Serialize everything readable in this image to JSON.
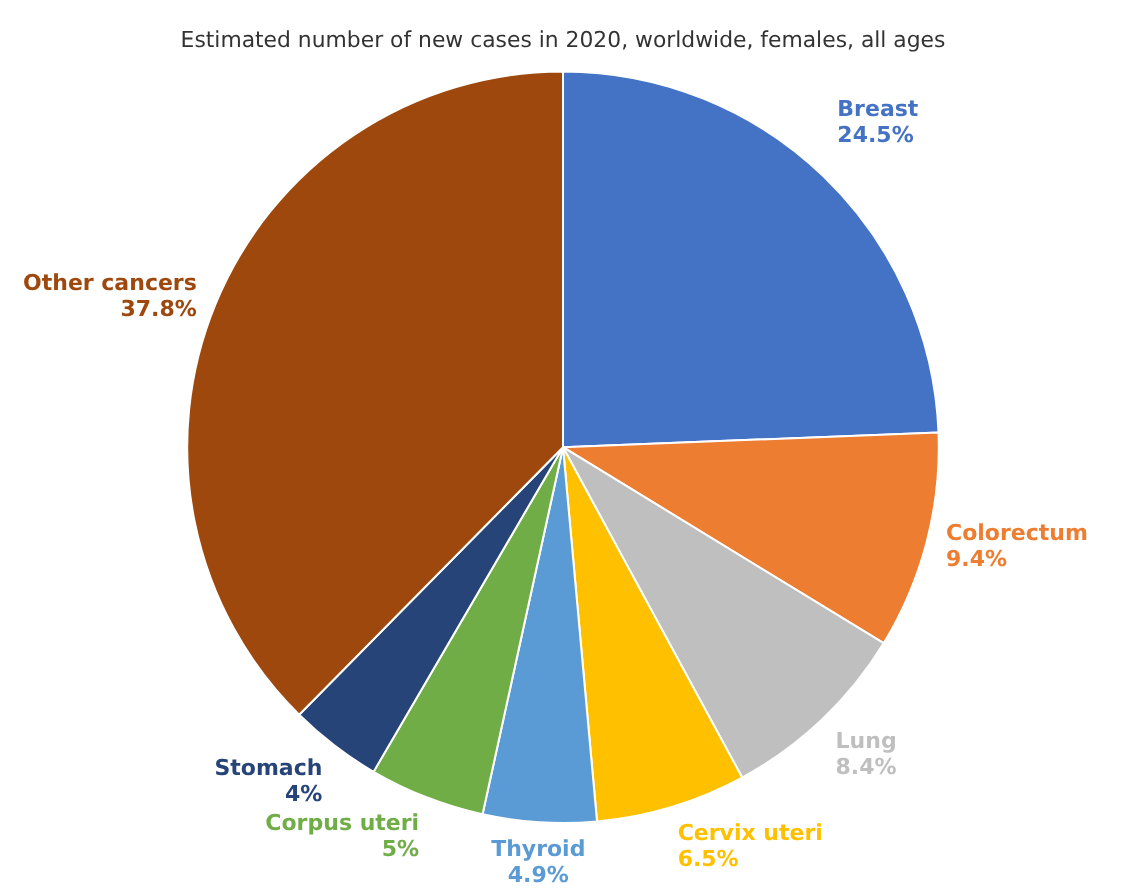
{
  "chart_data": {
    "type": "pie",
    "title": "Estimated number of new cases in 2020, worldwide, females, all ages",
    "categories": [
      "Breast",
      "Colorectum",
      "Lung",
      "Cervix uteri",
      "Thyroid",
      "Corpus uteri",
      "Stomach",
      "Other cancers"
    ],
    "values": [
      24.5,
      9.4,
      8.4,
      6.5,
      4.9,
      5,
      4,
      37.8
    ],
    "value_labels": [
      "24.5%",
      "9.4%",
      "8.4%",
      "6.5%",
      "4.9%",
      "5%",
      "4%",
      "37.8%"
    ],
    "colors": [
      "#4472c4",
      "#ed7d31",
      "#bfbfbf",
      "#ffc000",
      "#5b9bd5",
      "#70ad47",
      "#264478",
      "#9e480e"
    ],
    "legend": false
  }
}
